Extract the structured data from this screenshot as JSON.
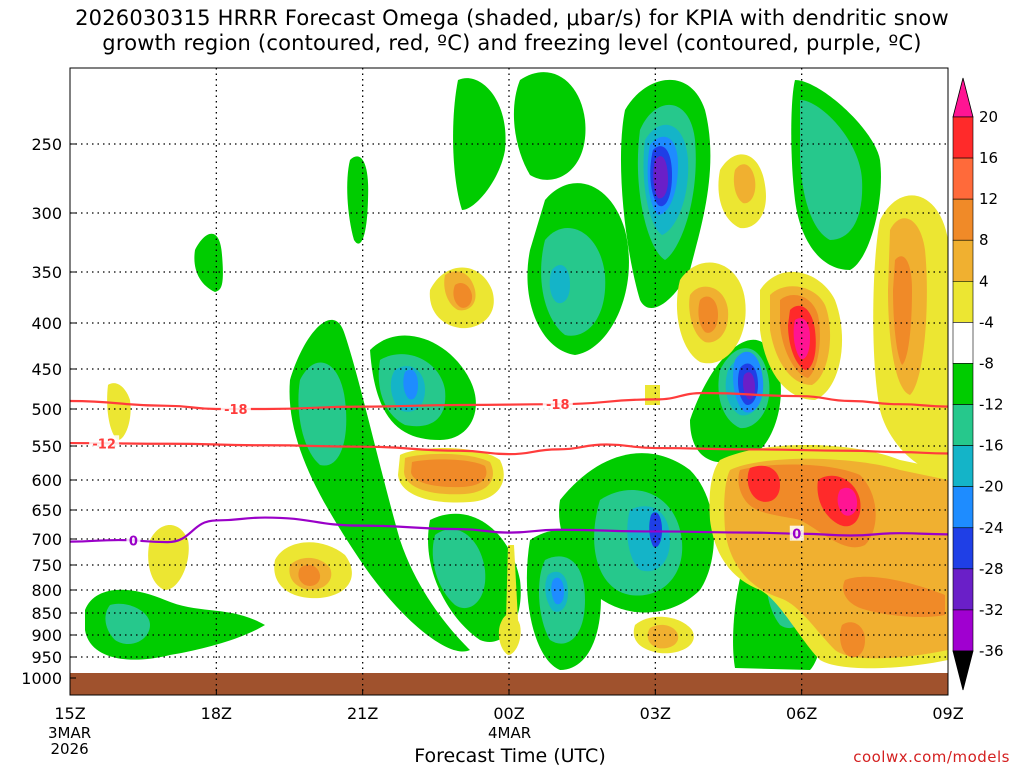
{
  "chart_data": {
    "type": "heatmap",
    "title_line1": "2026030315 HRRR Forecast Omega (shaded, μbar/s) for KPIA with dendritic snow",
    "title_line2": "growth region (contoured, red, ºC) and freezing level (contoured, purple, ºC)",
    "xlabel": "Forecast Time (UTC)",
    "credit": "coolwx.com/models",
    "x_ticks": [
      "15Z",
      "18Z",
      "21Z",
      "00Z",
      "03Z",
      "06Z",
      "09Z"
    ],
    "x_tick_hours": [
      0,
      3,
      6,
      9,
      12,
      15,
      18
    ],
    "x_sub_labels": [
      {
        "at_hour": 0,
        "lines": [
          "3MAR",
          "2026"
        ]
      },
      {
        "at_hour": 9,
        "lines": [
          "4MAR"
        ]
      }
    ],
    "y_ticks": [
      "250",
      "300",
      "350",
      "400",
      "450",
      "500",
      "550",
      "600",
      "650",
      "700",
      "750",
      "800",
      "850",
      "900",
      "950",
      "1000"
    ],
    "y_tick_values": [
      250,
      300,
      350,
      400,
      450,
      500,
      550,
      600,
      650,
      700,
      750,
      800,
      850,
      900,
      950,
      1000
    ],
    "ylim": [
      200,
      1025
    ],
    "xlim_hours": [
      0,
      18
    ],
    "colorbar": {
      "labels": [
        "20",
        "16",
        "12",
        "8",
        "4",
        "-4",
        "-8",
        "-12",
        "-16",
        "-20",
        "-24",
        "-28",
        "-32",
        "-36"
      ],
      "levels": [
        20,
        16,
        12,
        8,
        4,
        -4,
        -8,
        -12,
        -16,
        -20,
        -24,
        -28,
        -32,
        -36
      ],
      "colors": [
        "#ff1493",
        "#ff2a2a",
        "#ff6a3a",
        "#f08a28",
        "#f0b030",
        "#ece632",
        "#ffffff",
        "#00cc00",
        "#26c88c",
        "#14b4c8",
        "#1e8cff",
        "#1f3fe6",
        "#6a1fc8",
        "#a000d0",
        "#a8a8a8",
        "#000000"
      ]
    },
    "contours": [
      {
        "name": "dendritic top",
        "label": "-18",
        "color": "#ff3c3c",
        "hours": [
          0,
          2,
          3,
          4,
          6,
          8,
          10,
          12,
          13,
          15,
          16,
          17,
          18
        ],
        "pressures": [
          490,
          496,
          500,
          500,
          497,
          495,
          494,
          488,
          480,
          484,
          490,
          494,
          497
        ]
      },
      {
        "name": "dendritic bottom",
        "label": "-12",
        "color": "#ff3c3c",
        "hours": [
          0,
          2,
          4,
          6,
          8,
          9,
          10,
          11,
          12,
          14,
          16,
          17,
          18
        ],
        "pressures": [
          546,
          547,
          549,
          551,
          557,
          562,
          555,
          548,
          553,
          555,
          557,
          559,
          561
        ]
      },
      {
        "name": "freezing level",
        "label": "0",
        "color": "#9a00c8",
        "hours": [
          0,
          1,
          2,
          3,
          4,
          6,
          8,
          9,
          10,
          12,
          14,
          15,
          16,
          17,
          18
        ],
        "pressures": [
          705,
          702,
          706,
          668,
          663,
          677,
          683,
          689,
          684,
          687,
          689,
          691,
          694,
          690,
          692
        ]
      }
    ],
    "omega_regions_sample": [
      {
        "center_hour": 12.0,
        "center_p": 270,
        "min": -24
      },
      {
        "center_hour": 14.8,
        "center_p": 470,
        "min": -24
      },
      {
        "center_hour": 15.8,
        "center_p": 645,
        "max": 20
      },
      {
        "center_hour": 15.0,
        "center_p": 420,
        "max": 16
      }
    ]
  }
}
